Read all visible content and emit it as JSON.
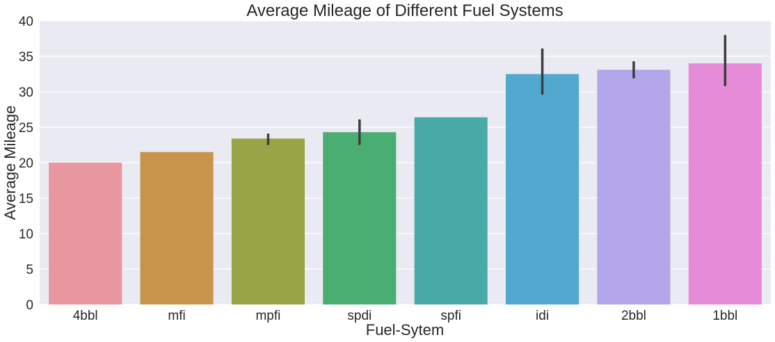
{
  "chart_data": {
    "type": "bar",
    "title": "Average Mileage of Different Fuel Systems",
    "xlabel": "Fuel-Sytem",
    "ylabel": "Average Mileage",
    "ylim": [
      0,
      40
    ],
    "yticks": [
      0,
      5,
      10,
      15,
      20,
      25,
      30,
      35,
      40
    ],
    "grid": true,
    "background": "#eaeaf2",
    "categories": [
      "4bbl",
      "mfi",
      "mpfi",
      "spdi",
      "spfi",
      "idi",
      "2bbl",
      "1bbl"
    ],
    "values": [
      20.0,
      21.5,
      23.4,
      24.3,
      26.4,
      32.5,
      33.1,
      34.0
    ],
    "error_bars": [
      null,
      null,
      [
        22.5,
        24.1
      ],
      [
        22.5,
        26.1
      ],
      null,
      [
        29.6,
        36.1
      ],
      [
        31.9,
        34.3
      ],
      [
        30.8,
        38.0
      ]
    ],
    "colors": [
      "#e8969f",
      "#c8944b",
      "#98a445",
      "#4aae72",
      "#4aaaa8",
      "#51a9d0",
      "#b3a5ea",
      "#e68bd7"
    ]
  }
}
